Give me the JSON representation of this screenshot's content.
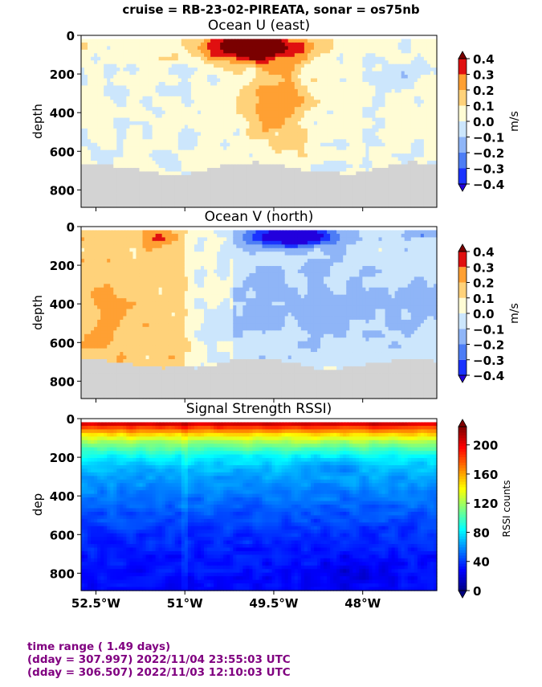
{
  "suptitle": "cruise = RB-23-02-PIREATA,  sonar = os75nb",
  "footer": {
    "line1": "time range ( 1.49 days)",
    "line2": "(dday = 307.997) 2022/11/04 23:55:03 UTC",
    "line3": "(dday = 306.507) 2022/11/03 12:10:03 UTC"
  },
  "colors": {
    "footer_text": "#800080",
    "no_data": "#d3d3d3",
    "diverging_levels": [
      "#2200dd",
      "#1a33ff",
      "#4d7df5",
      "#8fb5f7",
      "#cce6fc",
      "#fffcd5",
      "#ffd27a",
      "#ffa033",
      "#ff5a1a",
      "#e01010",
      "#7a0000"
    ],
    "jet": [
      "#00007f",
      "#0000ff",
      "#007fff",
      "#00ffff",
      "#7fff7f",
      "#ffff00",
      "#ff7f00",
      "#ff0000",
      "#7f0000"
    ]
  },
  "chart_data": [
    {
      "type": "heatmap",
      "title": "Ocean U (east)",
      "xlabel": "",
      "ylabel": "depth",
      "xlim": [
        -52.75,
        -46.75
      ],
      "ylim": [
        890,
        0
      ],
      "yticks": [
        0,
        200,
        400,
        600,
        800
      ],
      "ytick_labels": [
        "0",
        "200",
        "400",
        "600",
        "800"
      ],
      "xticks": [
        -52.5,
        -51,
        -49.5,
        -48
      ],
      "xtick_labels": [],
      "colorbar": {
        "label": "m/s",
        "levels": [
          -0.4,
          -0.3,
          -0.2,
          -0.1,
          0.0,
          0.1,
          0.2,
          0.3,
          0.4
        ],
        "tick_labels": [
          "−0.4",
          "−0.3",
          "−0.2",
          "−0.1",
          "0.0",
          "0.1",
          "0.2",
          "0.3",
          "0.4"
        ]
      },
      "features": [
        {
          "desc": "strong eastward surface jet",
          "lon_range": [
            -51.2,
            -48.6
          ],
          "depth_range": [
            20,
            190
          ],
          "value": 0.4
        },
        {
          "desc": "eastward core below jet",
          "lon_range": [
            -50.2,
            -48.6
          ],
          "depth_range": [
            190,
            720
          ],
          "value": 0.15
        },
        {
          "desc": "weak westward patch",
          "lon_range": [
            -47.8,
            -47.0
          ],
          "depth_range": [
            130,
            300
          ],
          "value": -0.15
        }
      ],
      "bottom_depth_approx": 700
    },
    {
      "type": "heatmap",
      "title": "Ocean V (north)",
      "xlabel": "",
      "ylabel": "depth",
      "xlim": [
        -52.75,
        -46.75
      ],
      "ylim": [
        890,
        0
      ],
      "yticks": [
        0,
        200,
        400,
        600,
        800
      ],
      "ytick_labels": [
        "0",
        "200",
        "400",
        "600",
        "800"
      ],
      "xticks": [
        -52.5,
        -51,
        -49.5,
        -48
      ],
      "xtick_labels": [],
      "colorbar": {
        "label": "m/s",
        "levels": [
          -0.4,
          -0.3,
          -0.2,
          -0.1,
          0.0,
          0.1,
          0.2,
          0.3,
          0.4
        ],
        "tick_labels": [
          "−0.4",
          "−0.3",
          "−0.2",
          "−0.1",
          "0.0",
          "0.1",
          "0.2",
          "0.3",
          "0.4"
        ]
      },
      "features": [
        {
          "desc": "strong southward surface flow",
          "lon_range": [
            -50.3,
            -48.1
          ],
          "depth_range": [
            20,
            130
          ],
          "value": -0.4
        },
        {
          "desc": "northward flow west side",
          "lon_range": [
            -52.75,
            -51.2
          ],
          "depth_range": [
            20,
            680
          ],
          "value": 0.15
        },
        {
          "desc": "southward flow interior",
          "lon_range": [
            -50.0,
            -47.5
          ],
          "depth_range": [
            150,
            700
          ],
          "value": -0.15
        }
      ],
      "bottom_depth_approx": 720
    },
    {
      "type": "heatmap",
      "title": "Signal Strength RSSI)",
      "xlabel": "",
      "ylabel": "dep",
      "xlim": [
        -52.75,
        -46.75
      ],
      "ylim": [
        890,
        0
      ],
      "yticks": [
        0,
        200,
        400,
        600,
        800
      ],
      "ytick_labels": [
        "0",
        "200",
        "400",
        "600",
        "800"
      ],
      "xticks": [
        -52.5,
        -51,
        -49.5,
        -48
      ],
      "xtick_labels": [
        "52.5°W",
        "51°W",
        "49.5°W",
        "48°W"
      ],
      "colorbar": {
        "label": "RSSI counts",
        "levels": [
          0,
          40,
          80,
          120,
          160,
          200
        ],
        "vmax": 225,
        "tick_labels": [
          "0",
          "40",
          "80",
          "120",
          "160",
          "200"
        ]
      },
      "profile": {
        "depth": [
          20,
          50,
          80,
          120,
          160,
          200,
          250,
          300,
          400,
          500,
          600,
          700,
          800,
          890
        ],
        "rssi": [
          215,
          180,
          150,
          120,
          100,
          82,
          70,
          65,
          55,
          45,
          38,
          33,
          30,
          28
        ]
      }
    }
  ]
}
